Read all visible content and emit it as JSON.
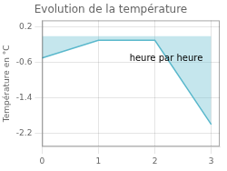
{
  "chart_data": {
    "type": "line",
    "title": "Evolution de la température",
    "ylabel": "Température en °C",
    "x": [
      0,
      1,
      2,
      3
    ],
    "values": [
      -0.5,
      -0.1,
      -0.1,
      -2.0
    ],
    "color": "#5ab8cc",
    "xlim": [
      0,
      3.15
    ],
    "ylim": [
      -2.5,
      0.35
    ],
    "xticks": [
      0,
      1,
      2,
      3
    ],
    "yticks": [
      0.2,
      -0.6,
      -1.4,
      -2.2
    ],
    "grid": true,
    "annotations": [
      {
        "text": "heure par heure",
        "x": 1.55,
        "y": -0.42
      }
    ]
  }
}
